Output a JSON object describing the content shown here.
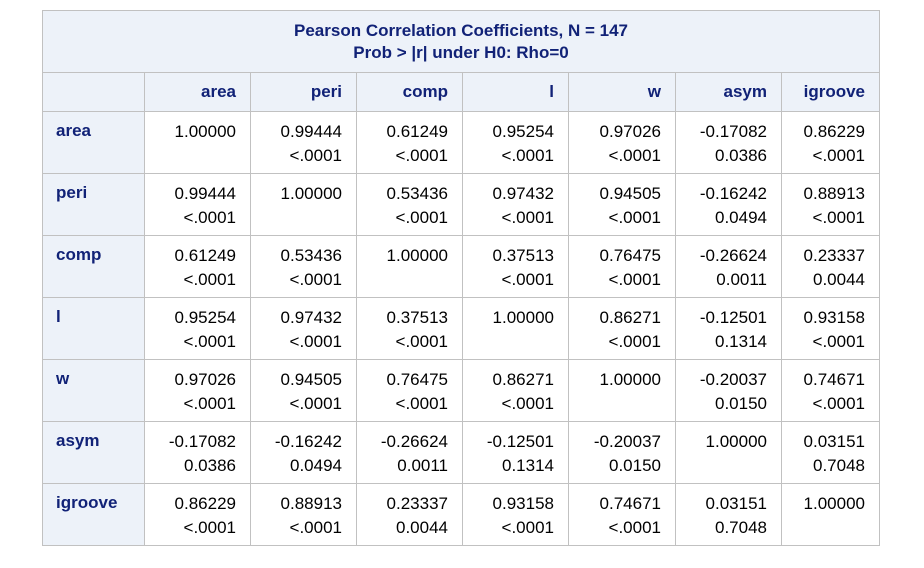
{
  "title": {
    "line1": "Pearson Correlation Coefficients, N = 147",
    "line2": "Prob > |r| under H0: Rho=0"
  },
  "columns": [
    "area",
    "peri",
    "comp",
    "l",
    "w",
    "asym",
    "igroove"
  ],
  "rows": [
    {
      "label": "area",
      "cells": [
        {
          "r": "1.00000",
          "p": ""
        },
        {
          "r": "0.99444",
          "p": "<.0001"
        },
        {
          "r": "0.61249",
          "p": "<.0001"
        },
        {
          "r": "0.95254",
          "p": "<.0001"
        },
        {
          "r": "0.97026",
          "p": "<.0001"
        },
        {
          "r": "-0.17082",
          "p": "0.0386"
        },
        {
          "r": "0.86229",
          "p": "<.0001"
        }
      ]
    },
    {
      "label": "peri",
      "cells": [
        {
          "r": "0.99444",
          "p": "<.0001"
        },
        {
          "r": "1.00000",
          "p": ""
        },
        {
          "r": "0.53436",
          "p": "<.0001"
        },
        {
          "r": "0.97432",
          "p": "<.0001"
        },
        {
          "r": "0.94505",
          "p": "<.0001"
        },
        {
          "r": "-0.16242",
          "p": "0.0494"
        },
        {
          "r": "0.88913",
          "p": "<.0001"
        }
      ]
    },
    {
      "label": "comp",
      "cells": [
        {
          "r": "0.61249",
          "p": "<.0001"
        },
        {
          "r": "0.53436",
          "p": "<.0001"
        },
        {
          "r": "1.00000",
          "p": ""
        },
        {
          "r": "0.37513",
          "p": "<.0001"
        },
        {
          "r": "0.76475",
          "p": "<.0001"
        },
        {
          "r": "-0.26624",
          "p": "0.0011"
        },
        {
          "r": "0.23337",
          "p": "0.0044"
        }
      ]
    },
    {
      "label": "l",
      "cells": [
        {
          "r": "0.95254",
          "p": "<.0001"
        },
        {
          "r": "0.97432",
          "p": "<.0001"
        },
        {
          "r": "0.37513",
          "p": "<.0001"
        },
        {
          "r": "1.00000",
          "p": ""
        },
        {
          "r": "0.86271",
          "p": "<.0001"
        },
        {
          "r": "-0.12501",
          "p": "0.1314"
        },
        {
          "r": "0.93158",
          "p": "<.0001"
        }
      ]
    },
    {
      "label": "w",
      "cells": [
        {
          "r": "0.97026",
          "p": "<.0001"
        },
        {
          "r": "0.94505",
          "p": "<.0001"
        },
        {
          "r": "0.76475",
          "p": "<.0001"
        },
        {
          "r": "0.86271",
          "p": "<.0001"
        },
        {
          "r": "1.00000",
          "p": ""
        },
        {
          "r": "-0.20037",
          "p": "0.0150"
        },
        {
          "r": "0.74671",
          "p": "<.0001"
        }
      ]
    },
    {
      "label": "asym",
      "cells": [
        {
          "r": "-0.17082",
          "p": "0.0386"
        },
        {
          "r": "-0.16242",
          "p": "0.0494"
        },
        {
          "r": "-0.26624",
          "p": "0.0011"
        },
        {
          "r": "-0.12501",
          "p": "0.1314"
        },
        {
          "r": "-0.20037",
          "p": "0.0150"
        },
        {
          "r": "1.00000",
          "p": ""
        },
        {
          "r": "0.03151",
          "p": "0.7048"
        }
      ]
    },
    {
      "label": "igroove",
      "cells": [
        {
          "r": "0.86229",
          "p": "<.0001"
        },
        {
          "r": "0.88913",
          "p": "<.0001"
        },
        {
          "r": "0.23337",
          "p": "0.0044"
        },
        {
          "r": "0.93158",
          "p": "<.0001"
        },
        {
          "r": "0.74671",
          "p": "<.0001"
        },
        {
          "r": "0.03151",
          "p": "0.7048"
        },
        {
          "r": "1.00000",
          "p": ""
        }
      ]
    }
  ]
}
